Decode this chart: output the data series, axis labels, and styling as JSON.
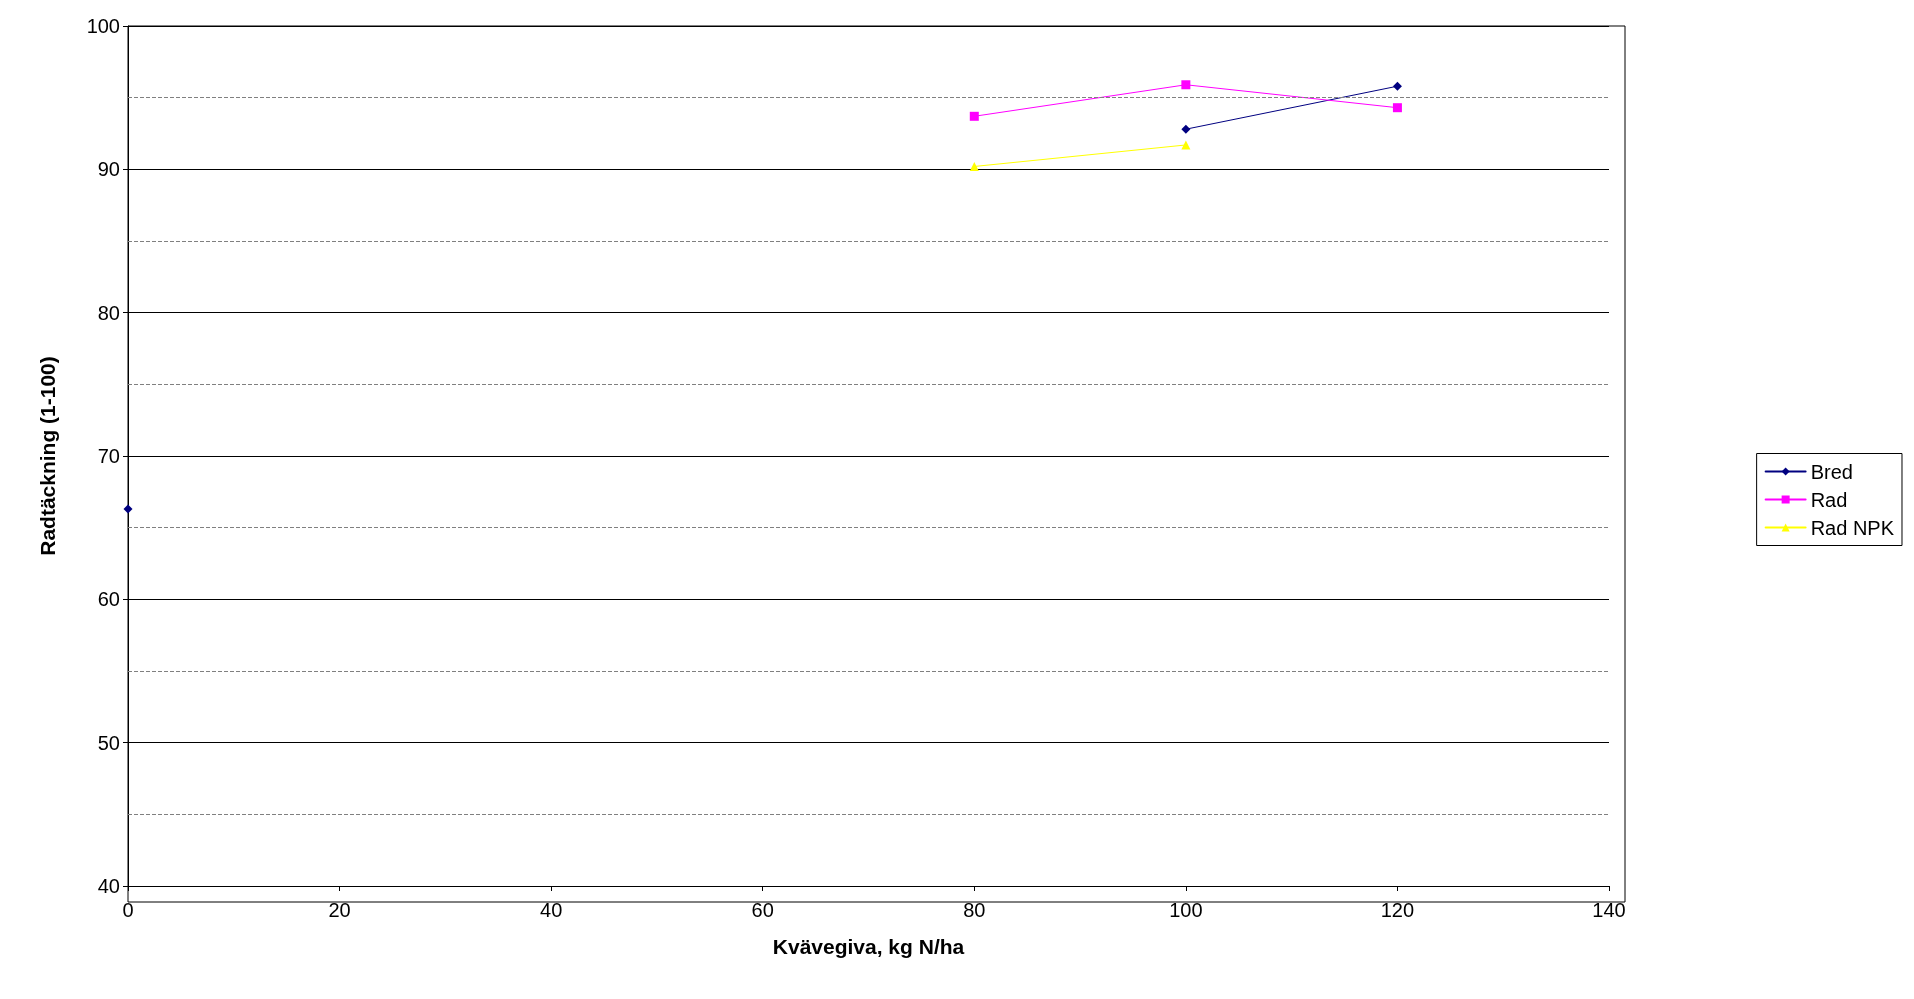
{
  "chart_data": {
    "type": "line",
    "xlabel": "Kvävegiva, kg N/ha",
    "ylabel": "Radtäckning (1-100)",
    "x": [
      0,
      80,
      100,
      120
    ],
    "series": [
      {
        "name": "Bred",
        "color": "#000080",
        "marker": "diamond",
        "values": [
          66.3,
          null,
          92.8,
          95.8
        ]
      },
      {
        "name": "Rad",
        "color": "#ff00ff",
        "marker": "square",
        "values": [
          null,
          93.7,
          95.9,
          94.3
        ]
      },
      {
        "name": "Rad NPK",
        "color": "#ffff00",
        "marker": "triangle",
        "values": [
          null,
          90.2,
          91.7,
          null
        ]
      }
    ],
    "xlim": [
      0,
      140
    ],
    "xticks": [
      0,
      20,
      40,
      60,
      80,
      100,
      120,
      140
    ],
    "ylim": [
      40,
      100
    ],
    "yticks": [
      40,
      50,
      60,
      70,
      80,
      90,
      100
    ],
    "ref_lines": [
      {
        "axis": "y",
        "value": 45,
        "line_style": "dashed",
        "color": "#808080"
      },
      {
        "axis": "y",
        "value": 55,
        "line_style": "dashed",
        "color": "#808080"
      },
      {
        "axis": "y",
        "value": 65,
        "line_style": "dashed",
        "color": "#808080"
      },
      {
        "axis": "y",
        "value": 75,
        "line_style": "dashed",
        "color": "#808080"
      },
      {
        "axis": "y",
        "value": 85,
        "line_style": "dashed",
        "color": "#808080"
      },
      {
        "axis": "y",
        "value": 95,
        "line_style": "dashed",
        "color": "#808080"
      }
    ],
    "grid": "y",
    "legend": "right"
  }
}
